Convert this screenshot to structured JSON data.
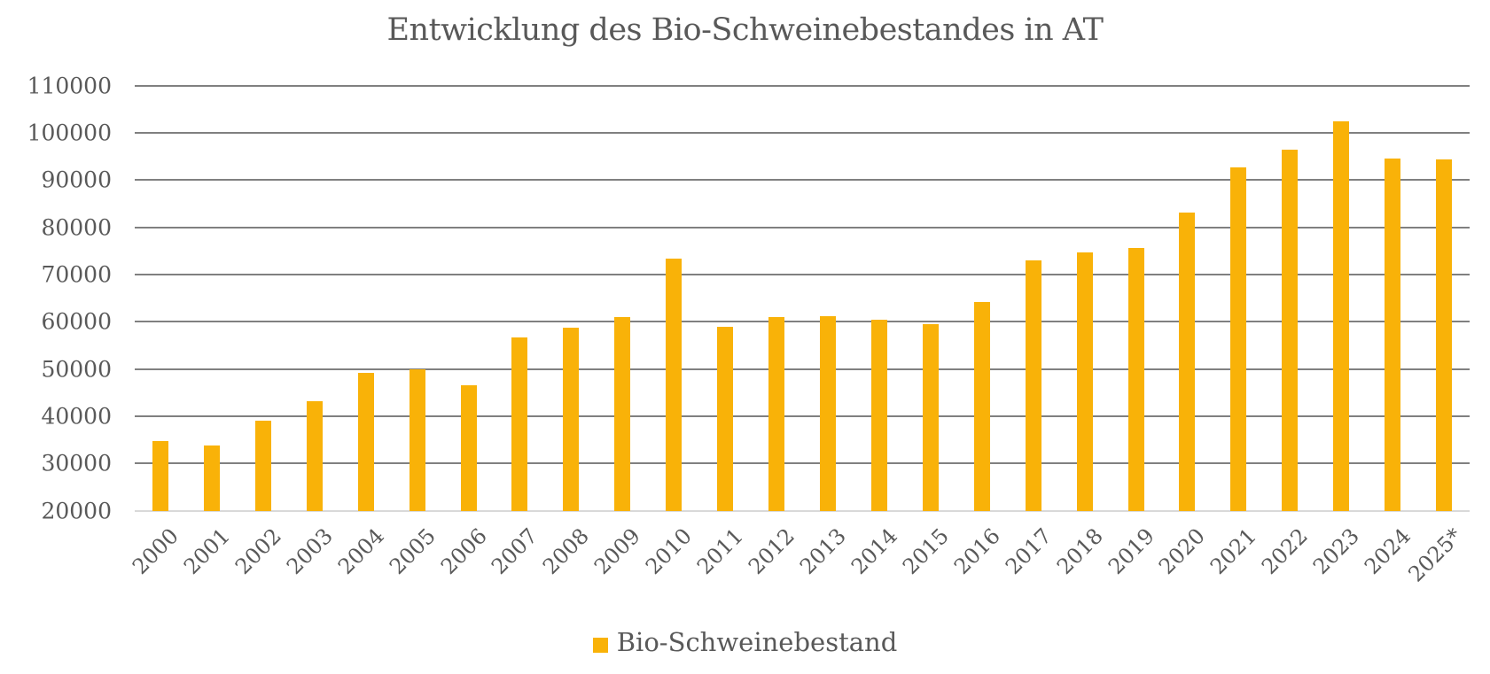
{
  "colors": {
    "bar": "#F9B208",
    "grid": "#808080",
    "baseline": "#D9D9D9",
    "text": "#595959"
  },
  "chart_data": {
    "type": "bar",
    "title": "Entwicklung des Bio-Schweinebestandes in AT",
    "xlabel": "",
    "ylabel": "",
    "categories": [
      "2000",
      "2001",
      "2002",
      "2003",
      "2004",
      "2005",
      "2006",
      "2007",
      "2008",
      "2009",
      "2010",
      "2011",
      "2012",
      "2013",
      "2014",
      "2015",
      "2016",
      "2017",
      "2018",
      "2019",
      "2020",
      "2021",
      "2022",
      "2023",
      "2024",
      "2025*"
    ],
    "series": [
      {
        "name": "Bio-Schweinebestand",
        "values": [
          34760,
          33820,
          39070,
          43190,
          49190,
          49940,
          46570,
          56700,
          58760,
          61010,
          73380,
          58880,
          61010,
          61200,
          60450,
          59510,
          64200,
          73000,
          74690,
          75630,
          83130,
          92690,
          96440,
          102440,
          94560,
          94370
        ]
      }
    ],
    "ylim": [
      20000,
      110000
    ],
    "yticks": [
      "20000",
      "30000",
      "40000",
      "50000",
      "60000",
      "70000",
      "80000",
      "90000",
      "100000",
      "110000"
    ],
    "grid": true,
    "legend_position": "bottom"
  },
  "legend": {
    "label": "Bio-Schweinebestand"
  }
}
